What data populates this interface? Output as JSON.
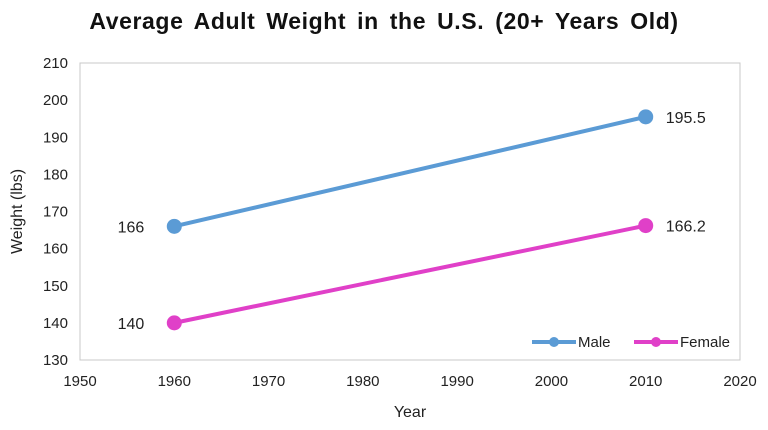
{
  "chart_data": {
    "type": "line",
    "title": "Average Adult Weight in the U.S. (20+ Years Old)",
    "xlabel": "Year",
    "ylabel": "Weight (lbs)",
    "xlim": [
      1950,
      2020
    ],
    "ylim": [
      130,
      210
    ],
    "xticks": [
      1950,
      1960,
      1970,
      1980,
      1990,
      2000,
      2010,
      2020
    ],
    "yticks": [
      130,
      140,
      150,
      160,
      170,
      180,
      190,
      200,
      210
    ],
    "grid": false,
    "legend_position": "bottom-right",
    "series": [
      {
        "name": "Male",
        "color": "#5b9bd5",
        "x": [
          1960,
          2010
        ],
        "y": [
          166,
          195.5
        ],
        "labels": [
          "166",
          "195.5"
        ]
      },
      {
        "name": "Female",
        "color": "#e040c8",
        "x": [
          1960,
          2010
        ],
        "y": [
          140,
          166.2
        ],
        "labels": [
          "140",
          "166.2"
        ]
      }
    ]
  }
}
